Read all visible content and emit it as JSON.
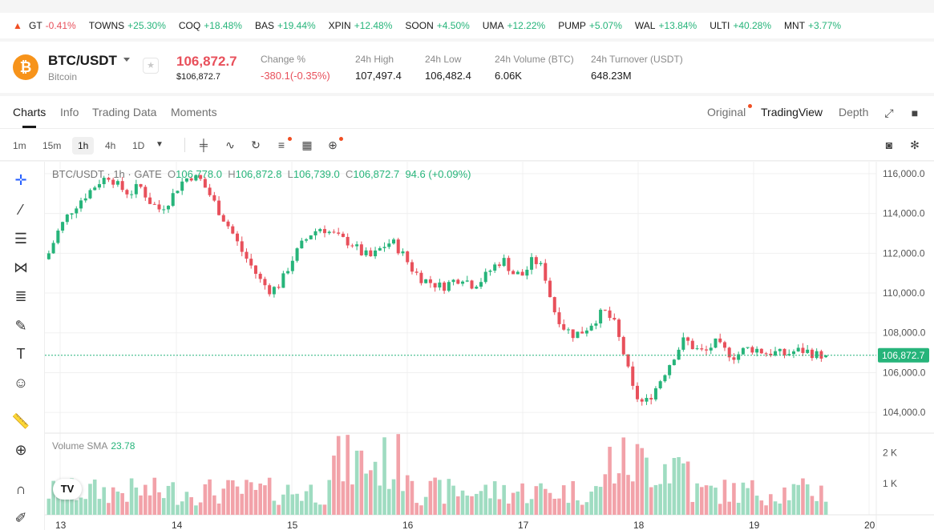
{
  "ticker": [
    {
      "sym": "GT",
      "chg": "-0.41%",
      "up": false
    },
    {
      "sym": "TOWNS",
      "chg": "+25.30%",
      "up": true
    },
    {
      "sym": "COQ",
      "chg": "+18.48%",
      "up": true
    },
    {
      "sym": "BAS",
      "chg": "+19.44%",
      "up": true
    },
    {
      "sym": "XPIN",
      "chg": "+12.48%",
      "up": true
    },
    {
      "sym": "SOON",
      "chg": "+4.50%",
      "up": true
    },
    {
      "sym": "UMA",
      "chg": "+12.22%",
      "up": true
    },
    {
      "sym": "PUMP",
      "chg": "+5.07%",
      "up": true
    },
    {
      "sym": "WAL",
      "chg": "+13.84%",
      "up": true
    },
    {
      "sym": "ULTI",
      "chg": "+40.28%",
      "up": true
    },
    {
      "sym": "MNT",
      "chg": "+3.77%",
      "up": true
    }
  ],
  "header": {
    "coin_glyph": "₿",
    "pair": "BTC/USDT",
    "name": "Bitcoin",
    "fav_glyph": "★",
    "price": "106,872.7",
    "price_sub": "$106,872.7",
    "stats": [
      {
        "label": "Change %",
        "value": "-380.1(-0.35%)",
        "red": true
      },
      {
        "label": "24h High",
        "value": "107,497.4",
        "red": false
      },
      {
        "label": "24h Low",
        "value": "106,482.4",
        "red": false
      },
      {
        "label": "24h Volume (BTC)",
        "value": "6.06K",
        "red": false
      },
      {
        "label": "24h Turnover (USDT)",
        "value": "648.23M",
        "red": false
      }
    ]
  },
  "tabs": {
    "left": [
      "Charts",
      "Info",
      "Trading Data",
      "Moments"
    ],
    "right": [
      "Original",
      "TradingView",
      "Depth"
    ]
  },
  "toolbar": {
    "timeframes": [
      "1m",
      "15m",
      "1h",
      "4h",
      "1D"
    ],
    "active": "1h"
  },
  "chart": {
    "title": "BTC/USDT · 1h · GATE",
    "open": "106,778.0",
    "high": "106,872.8",
    "low": "106,739.0",
    "close": "106,872.7",
    "change": "94.6 (+0.09%)",
    "ohlc_labels": [
      "O",
      "H",
      "L",
      "C"
    ],
    "last_price": "106,872.7",
    "volume_label": "Volume SMA",
    "volume_value": "23.78",
    "logo_glyph": "TV"
  },
  "chart_data": {
    "type": "candlestick",
    "y_ticks": [
      "116,000.0",
      "114,000.0",
      "112,000.0",
      "110,000.0",
      "108,000.0",
      "106,000.0",
      "104,000.0"
    ],
    "ylim": [
      103000,
      116600
    ],
    "x_ticks": [
      "13",
      "14",
      "15",
      "16",
      "17",
      "18",
      "19",
      "20"
    ],
    "volume_ticks": [
      "2 K",
      "1 K"
    ],
    "close_path": [
      112000,
      113200,
      114000,
      114600,
      115100,
      115600,
      115900,
      115300,
      115000,
      115400,
      114600,
      114200,
      114700,
      115500,
      115900,
      115700,
      114900,
      114000,
      113200,
      112200,
      111400,
      110600,
      110100,
      110500,
      111600,
      112400,
      113000,
      113300,
      113000,
      112700,
      112500,
      112000,
      111800,
      112300,
      112600,
      112000,
      111200,
      110700,
      110500,
      110300,
      110600,
      110800,
      110400,
      110700,
      111300,
      111700,
      111000,
      110900,
      111700,
      111200,
      109200,
      108300,
      107900,
      108100,
      108600,
      109100,
      108500,
      106900,
      104900,
      104400,
      105100,
      106000,
      106900,
      107700,
      107200,
      107000,
      107500,
      107100,
      106800,
      107200,
      107200,
      107000,
      107000,
      106900,
      107100,
      107100,
      106900,
      106872
    ]
  },
  "colors": {
    "up": "#26b47a",
    "down": "#e8505b",
    "upVol": "#9fdcc1",
    "downVol": "#f2a2a9"
  }
}
